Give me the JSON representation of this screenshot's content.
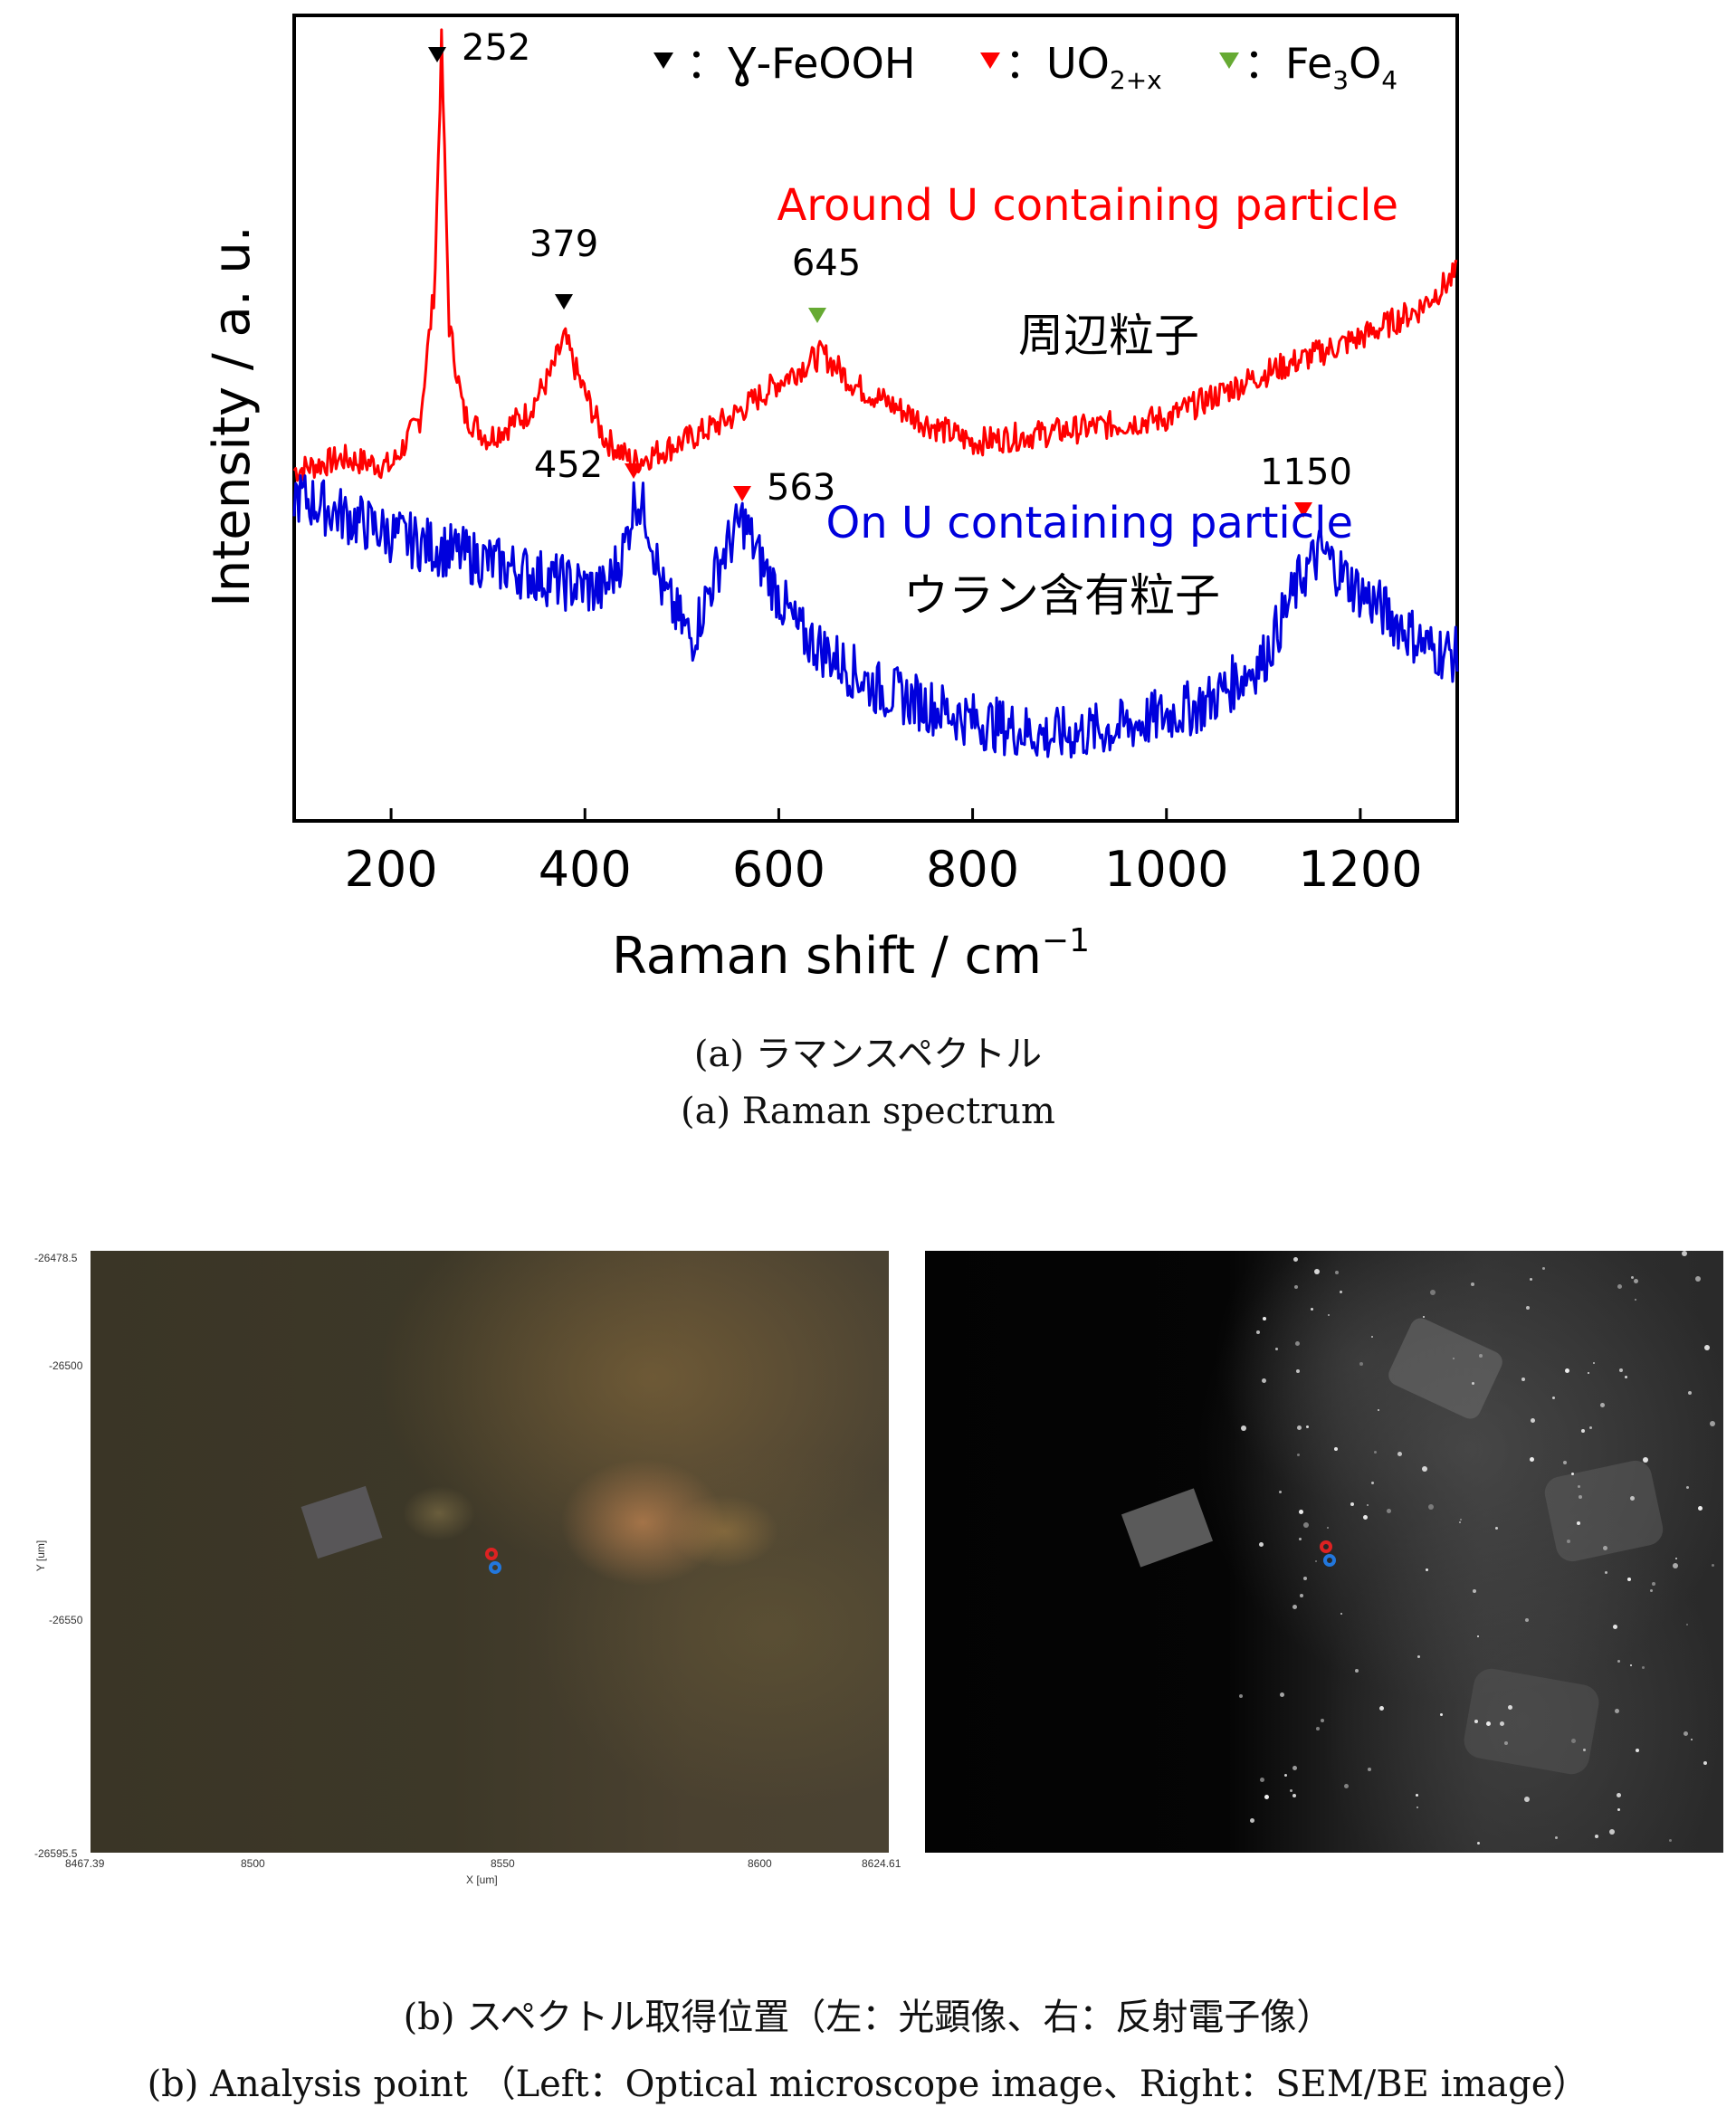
{
  "chart_data": {
    "type": "line",
    "xlabel": "Raman shift / cm",
    "xlabel_sup": "−1",
    "ylabel": "Intensity / a. u.",
    "xlim": [
      100,
      1300
    ],
    "x_ticks": [
      200,
      400,
      600,
      800,
      1000,
      1200
    ],
    "grid": false,
    "series": [
      {
        "name": "Around U containing particle",
        "name_ja": "周辺粒子",
        "color": "#ff0000",
        "x": [
          100,
          150,
          200,
          230,
          245,
          252,
          260,
          275,
          300,
          340,
          365,
          379,
          395,
          420,
          450,
          500,
          550,
          600,
          645,
          680,
          750,
          800,
          900,
          1000,
          1100,
          1200,
          1260,
          1300
        ],
        "y": [
          0.42,
          0.45,
          0.43,
          0.55,
          0.88,
          1.48,
          0.78,
          0.56,
          0.5,
          0.56,
          0.66,
          0.75,
          0.64,
          0.5,
          0.44,
          0.49,
          0.55,
          0.64,
          0.71,
          0.63,
          0.54,
          0.49,
          0.52,
          0.55,
          0.66,
          0.75,
          0.82,
          0.91
        ]
      },
      {
        "name": "On U containing particle",
        "name_ja": "ウラン含有粒子",
        "color": "#0000dd",
        "x": [
          100,
          150,
          200,
          260,
          320,
          380,
          420,
          440,
          452,
          465,
          480,
          510,
          540,
          563,
          580,
          620,
          700,
          800,
          880,
          950,
          1040,
          1100,
          1140,
          1160,
          1190,
          1230,
          1270,
          1300
        ],
        "y": [
          0.36,
          0.31,
          0.26,
          0.22,
          0.18,
          0.14,
          0.12,
          0.22,
          0.36,
          0.3,
          0.12,
          0.0,
          0.2,
          0.3,
          0.2,
          0.02,
          -0.12,
          -0.2,
          -0.24,
          -0.22,
          -0.16,
          -0.05,
          0.16,
          0.22,
          0.14,
          0.06,
          -0.02,
          -0.04
        ]
      }
    ],
    "peak_annotations": [
      {
        "label": "252",
        "x": 252,
        "marker": "black"
      },
      {
        "label": "379",
        "x": 379,
        "marker": "black"
      },
      {
        "label": "645",
        "x": 645,
        "marker": "green"
      },
      {
        "label": "452",
        "x": 452,
        "marker": "red"
      },
      {
        "label": "563",
        "x": 563,
        "marker": "red"
      },
      {
        "label": "1150",
        "x": 1150,
        "marker": "red"
      }
    ],
    "legend": [
      {
        "text": "：Ɣ-FeOOH",
        "color": "#000000"
      },
      {
        "text": "：UO",
        "sub": "2+x",
        "color": "#ff0000"
      },
      {
        "text": "：Fe",
        "sub1": "3",
        "mid": "O",
        "sub2": "4",
        "color": "#66aa33"
      }
    ],
    "legend_placement": "top"
  },
  "captions": {
    "a_ja": "(a) ラマンスペクトル",
    "a_en": "(a) Raman spectrum",
    "b_ja": "(b) スペクトル取得位置（左：光顕像、右：反射電子像）",
    "b_en": "(b) Analysis point （Left：Optical microscope image、Right：SEM/BE image）"
  },
  "optical_image": {
    "x_axis_label": "X [um]",
    "y_axis_label": "Y [um]",
    "x_ticks": [
      "8467.39",
      "8500",
      "8550",
      "8600",
      "8624.61"
    ],
    "y_ticks": [
      "-26478.5",
      "-26500",
      "-26550",
      "-26595.5"
    ],
    "marker_colors": [
      "#dd2222",
      "#2277dd"
    ]
  }
}
